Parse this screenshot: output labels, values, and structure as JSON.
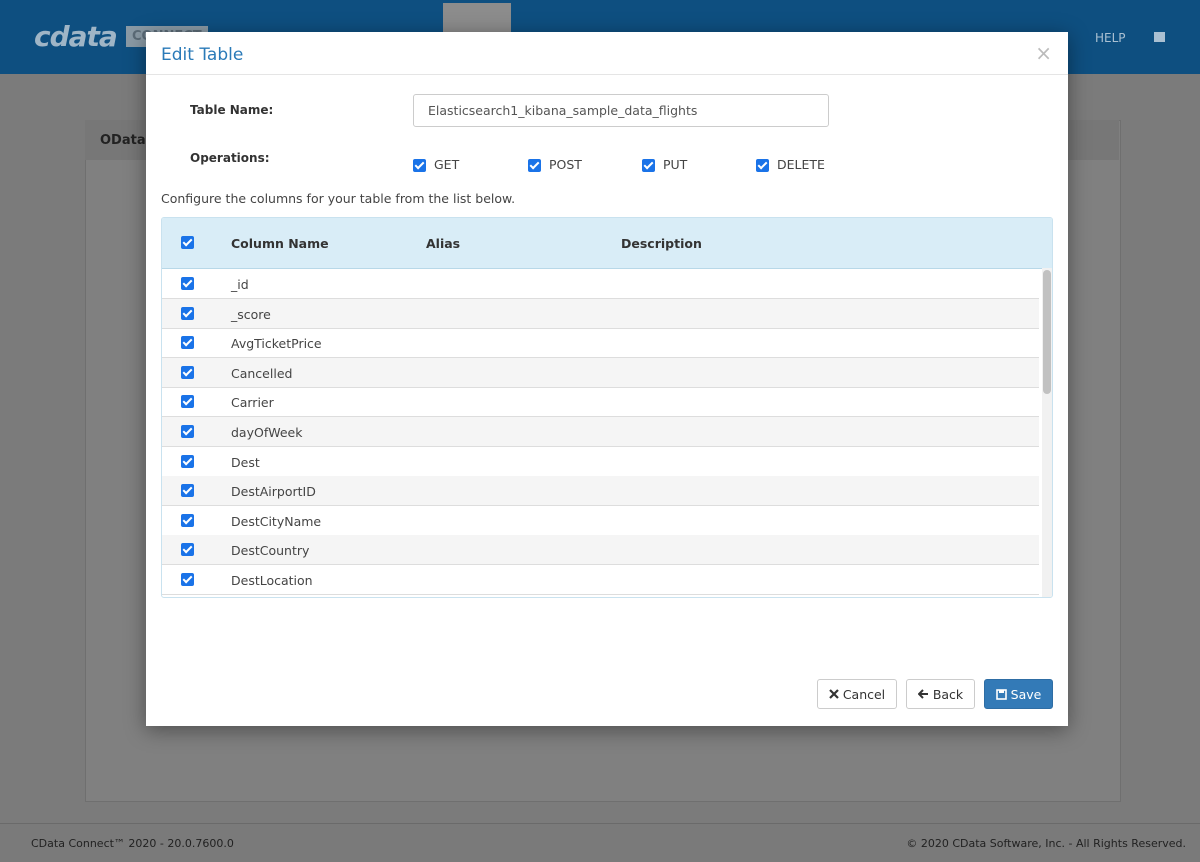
{
  "header": {
    "logo": "cdata",
    "product": "CONNECT",
    "help": "HELP"
  },
  "background_panel": {
    "title": "OData"
  },
  "modal": {
    "title": "Edit Table",
    "close": "×",
    "table_name_label": "Table Name:",
    "table_name_value": "Elasticsearch1_kibana_sample_data_flights",
    "operations_label": "Operations:",
    "operations": [
      "GET",
      "POST",
      "PUT",
      "DELETE"
    ],
    "instruction": "Configure the columns for your table from the list below.",
    "table": {
      "headers": [
        "Column Name",
        "Alias",
        "Description"
      ],
      "rows": [
        "_id",
        "_score",
        "AvgTicketPrice",
        "Cancelled",
        "Carrier",
        "dayOfWeek",
        "Dest",
        "DestAirportID",
        "DestCityName",
        "DestCountry",
        "DestLocation"
      ]
    },
    "buttons": {
      "cancel": "Cancel",
      "back": "Back",
      "save": "Save"
    }
  },
  "footer": {
    "version": "CData Connect™ 2020 - 20.0.7600.0",
    "copyright": "© 2020 CData Software, Inc. - All Rights Reserved."
  }
}
